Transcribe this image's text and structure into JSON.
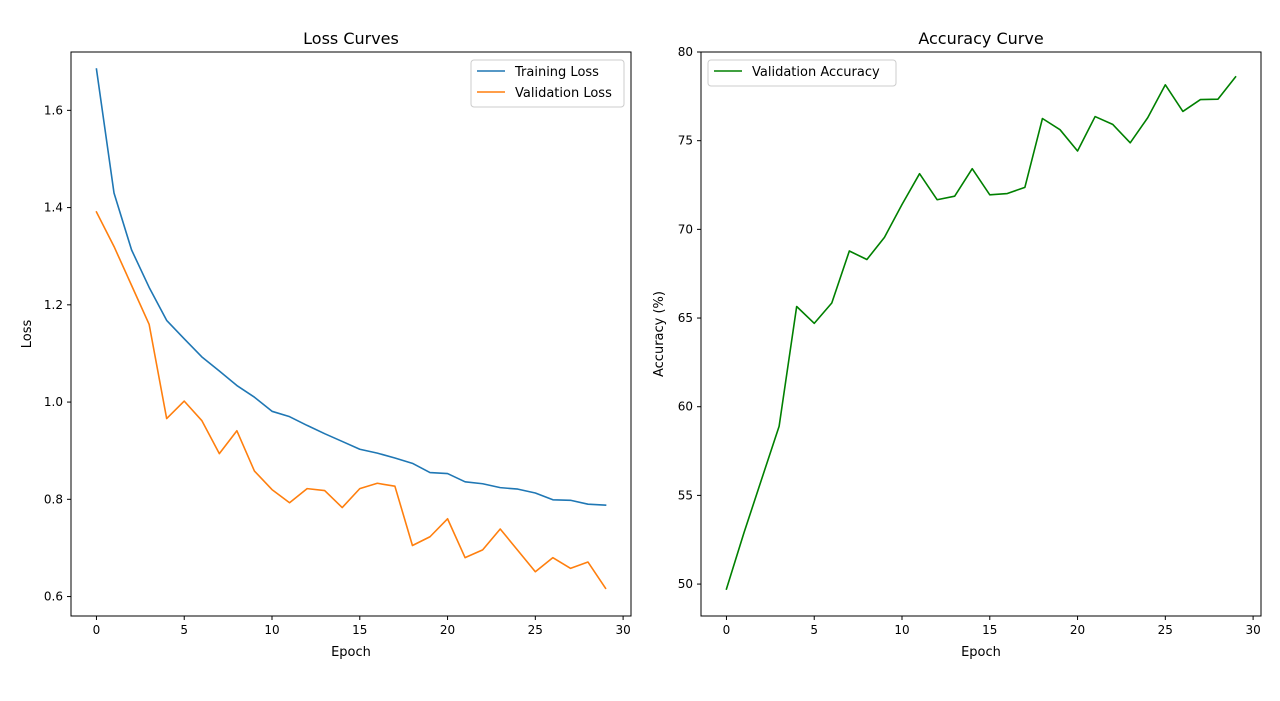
{
  "chart_data": [
    {
      "type": "line",
      "title": "Loss Curves",
      "xlabel": "Epoch",
      "ylabel": "Loss",
      "xlim": [
        -1.45,
        30.45
      ],
      "ylim": [
        0.56,
        1.72
      ],
      "xticks": [
        0,
        5,
        10,
        15,
        20,
        25,
        30
      ],
      "yticks": [
        0.6,
        0.8,
        1.0,
        1.2,
        1.4,
        1.6
      ],
      "xtick_labels": [
        "0",
        "5",
        "10",
        "15",
        "20",
        "25",
        "30"
      ],
      "ytick_labels": [
        "0.6",
        "0.8",
        "1.0",
        "1.2",
        "1.4",
        "1.6"
      ],
      "grid": false,
      "legend_position": "top-right",
      "x": [
        0,
        1,
        2,
        3,
        4,
        5,
        6,
        7,
        8,
        9,
        10,
        11,
        12,
        13,
        14,
        15,
        16,
        17,
        18,
        19,
        20,
        21,
        22,
        23,
        24,
        25,
        26,
        27,
        28,
        29
      ],
      "series": [
        {
          "name": "Training Loss",
          "color": "#1f77b4",
          "values": [
            1.685,
            1.43,
            1.313,
            1.236,
            1.168,
            1.13,
            1.093,
            1.064,
            1.034,
            1.01,
            0.981,
            0.97,
            0.952,
            0.935,
            0.919,
            0.903,
            0.895,
            0.885,
            0.874,
            0.855,
            0.853,
            0.836,
            0.832,
            0.824,
            0.821,
            0.813,
            0.799,
            0.798,
            0.79,
            0.788
          ]
        },
        {
          "name": "Validation Loss",
          "color": "#ff7f0e",
          "values": [
            1.391,
            1.32,
            1.24,
            1.16,
            0.966,
            1.002,
            0.962,
            0.894,
            0.941,
            0.858,
            0.82,
            0.793,
            0.822,
            0.818,
            0.783,
            0.822,
            0.833,
            0.827,
            0.705,
            0.723,
            0.76,
            0.68,
            0.696,
            0.739,
            0.695,
            0.651,
            0.68,
            0.658,
            0.671,
            0.617
          ]
        }
      ]
    },
    {
      "type": "line",
      "title": "Accuracy Curve",
      "xlabel": "Epoch",
      "ylabel": "Accuracy (%)",
      "xlim": [
        -1.45,
        30.45
      ],
      "ylim": [
        48.2,
        80.0
      ],
      "xticks": [
        0,
        5,
        10,
        15,
        20,
        25,
        30
      ],
      "yticks": [
        50,
        55,
        60,
        65,
        70,
        75,
        80
      ],
      "xtick_labels": [
        "0",
        "5",
        "10",
        "15",
        "20",
        "25",
        "30"
      ],
      "ytick_labels": [
        "50",
        "55",
        "60",
        "65",
        "70",
        "75",
        "80"
      ],
      "grid": false,
      "legend_position": "top-left",
      "x": [
        0,
        1,
        2,
        3,
        4,
        5,
        6,
        7,
        8,
        9,
        10,
        11,
        12,
        13,
        14,
        15,
        16,
        17,
        18,
        19,
        20,
        21,
        22,
        23,
        24,
        25,
        26,
        27,
        28,
        29
      ],
      "series": [
        {
          "name": "Validation Accuracy",
          "color": "#008000",
          "values": [
            49.72,
            52.9,
            55.9,
            58.9,
            65.65,
            64.7,
            65.85,
            68.78,
            68.3,
            69.55,
            71.4,
            73.14,
            71.67,
            71.87,
            73.42,
            71.95,
            72.02,
            72.37,
            76.25,
            75.62,
            74.42,
            76.36,
            75.92,
            74.88,
            76.3,
            78.15,
            76.65,
            77.32,
            77.34,
            78.6
          ]
        }
      ]
    }
  ]
}
